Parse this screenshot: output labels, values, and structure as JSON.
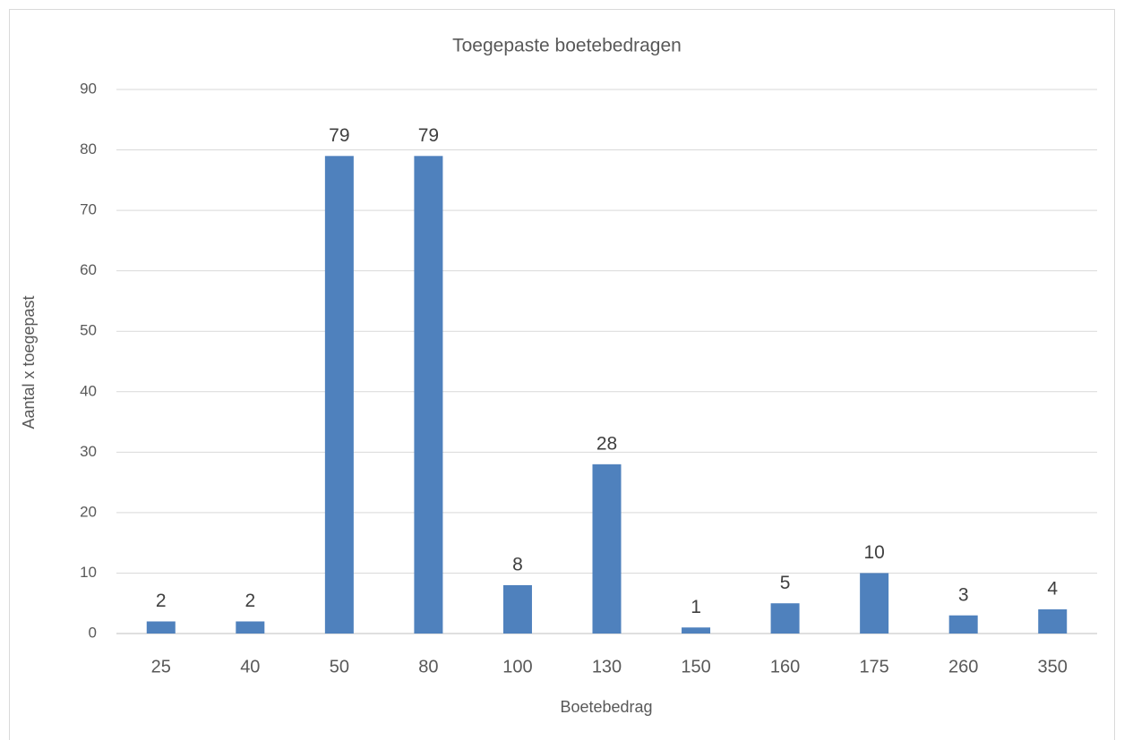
{
  "chart_data": {
    "type": "bar",
    "title": "Toegepaste boetebedragen",
    "x_label": "Boetebedrag",
    "y_label": "Aantal x toegepast",
    "categories": [
      "25",
      "40",
      "50",
      "80",
      "100",
      "130",
      "150",
      "160",
      "175",
      "260",
      "350"
    ],
    "values": [
      2,
      2,
      79,
      79,
      8,
      28,
      1,
      5,
      10,
      3,
      4
    ],
    "color": "#4f81bd",
    "ylim": [
      0,
      90
    ],
    "yticks": [
      0,
      10,
      20,
      30,
      40,
      50,
      60,
      70,
      80,
      90
    ],
    "grid": true
  }
}
